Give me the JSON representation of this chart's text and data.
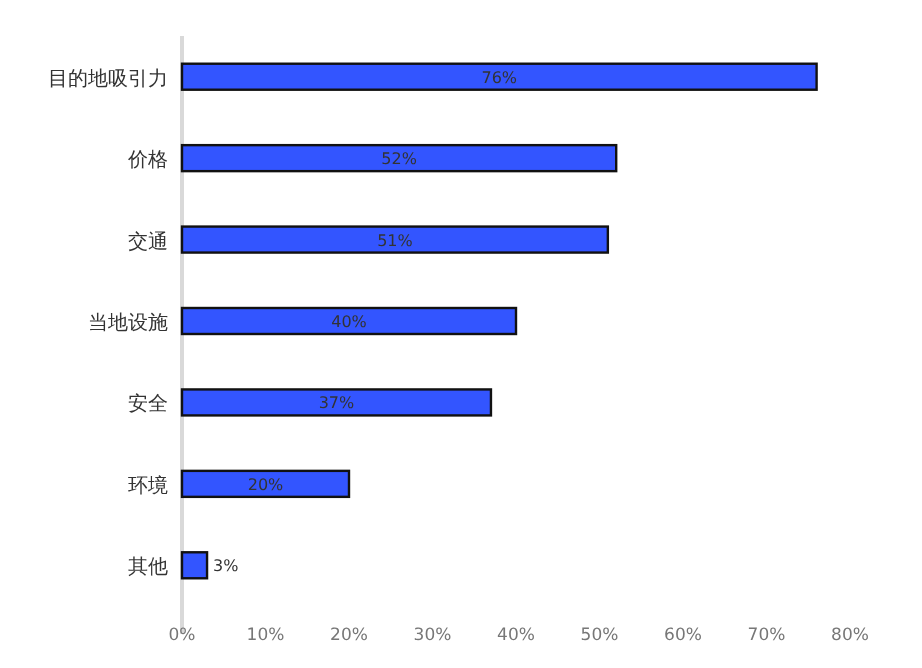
{
  "chart_data": {
    "type": "bar",
    "orientation": "horizontal",
    "categories": [
      "目的地吸引力",
      "价格",
      "交通",
      "当地设施",
      "安全",
      "环境",
      "其他"
    ],
    "values": [
      76,
      52,
      51,
      40,
      37,
      20,
      3
    ],
    "value_labels": [
      "76%",
      "52%",
      "51%",
      "40%",
      "37%",
      "20%",
      "3%"
    ],
    "color": "#3355ff",
    "xlim": [
      0,
      80
    ],
    "xticks": [
      {
        "value": 0,
        "label": "0%"
      },
      {
        "value": 10,
        "label": "10%"
      },
      {
        "value": 20,
        "label": "20%"
      },
      {
        "value": 30,
        "label": "30%"
      },
      {
        "value": 40,
        "label": "40%"
      },
      {
        "value": 50,
        "label": "50%"
      },
      {
        "value": 60,
        "label": "60%"
      },
      {
        "value": 70,
        "label": "70%"
      },
      {
        "value": 80,
        "label": "80%"
      }
    ],
    "grid": false
  }
}
